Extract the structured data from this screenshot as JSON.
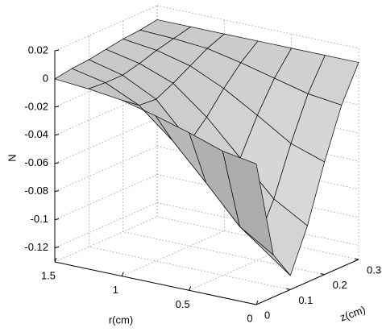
{
  "chart_data": {
    "type": "surface",
    "x_label": "r(cm)",
    "y_label": "z(cm)",
    "z_label": "N",
    "x": [
      0,
      0.25,
      0.5,
      0.75,
      1,
      1.25,
      1.5
    ],
    "y": [
      0,
      0.05,
      0.1,
      0.15,
      0.2,
      0.25,
      0.3
    ],
    "z": [
      [
        -0.03,
        -0.1,
        -0.12,
        -0.09,
        -0.05,
        -0.015,
        0.01
      ],
      [
        -0.026,
        -0.085,
        -0.102,
        -0.076,
        -0.042,
        -0.012,
        0.01
      ],
      [
        -0.018,
        -0.059,
        -0.071,
        -0.052,
        -0.027,
        -0.006,
        0.01
      ],
      [
        -0.011,
        -0.034,
        -0.04,
        -0.028,
        -0.013,
        0,
        0.01
      ],
      [
        -0.005,
        -0.014,
        -0.015,
        -0.009,
        -0.002,
        0.005,
        0.01
      ],
      [
        -0.002,
        -0.003,
        -0.003,
        0,
        0.004,
        0.007,
        0.01
      ],
      [
        0,
        0.002,
        0.003,
        0.005,
        0.007,
        0.008,
        0.01
      ]
    ],
    "xlim": [
      0,
      1.5
    ],
    "ylim": [
      0,
      0.3
    ],
    "zlim": [
      -0.13,
      0.02
    ],
    "xticks": [
      0,
      0.5,
      1,
      1.5
    ],
    "yticks": [
      0,
      0.1,
      0.2,
      0.3
    ],
    "zticks": [
      -0.12,
      -0.1,
      -0.08,
      -0.06,
      -0.04,
      -0.02,
      0,
      0.02
    ],
    "grid": true,
    "color": "#c8c8c8"
  }
}
